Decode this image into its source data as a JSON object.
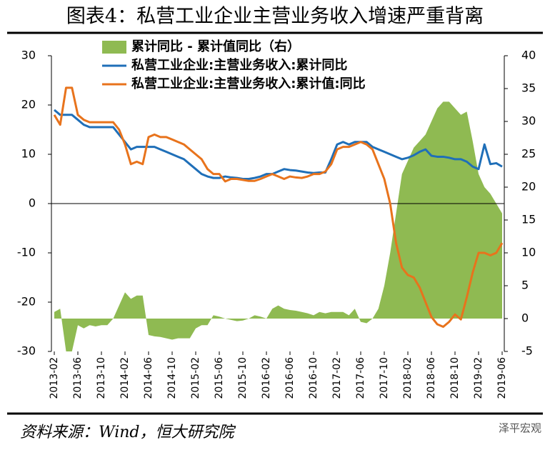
{
  "chart_data": {
    "type": "line",
    "title": "图表4：私营工业企业主营业务收入增速严重背离",
    "source": "资料来源：Wind，恒大研究院",
    "watermark": "泽平宏观",
    "categories": [
      "2013-02",
      null,
      null,
      null,
      "2013-06",
      null,
      null,
      null,
      "2013-10",
      null,
      null,
      null,
      "2014-02",
      null,
      null,
      null,
      "2014-06",
      null,
      null,
      null,
      "2014-10",
      null,
      null,
      null,
      "2015-02",
      null,
      null,
      null,
      "2015-06",
      null,
      null,
      null,
      "2015-10",
      null,
      null,
      null,
      "2016-02",
      null,
      null,
      null,
      "2016-06",
      null,
      null,
      null,
      "2016-10",
      null,
      null,
      null,
      "2017-02",
      null,
      null,
      null,
      "2017-06",
      null,
      null,
      null,
      "2017-10",
      null,
      null,
      null,
      "2018-02",
      null,
      null,
      null,
      "2018-06",
      null,
      null,
      null,
      "2018-10",
      null,
      null,
      null,
      "2019-02",
      null,
      null,
      null,
      "2019-06"
    ],
    "series": [
      {
        "name": "累计同比 - 累计值同比（右）",
        "type": "area",
        "axis": "y2",
        "color": "#8fba52",
        "values": [
          1,
          1.5,
          -5,
          -5,
          -1,
          -1.5,
          -1,
          -1.2,
          -1,
          -1,
          0,
          2,
          4,
          3,
          3.5,
          3.5,
          -2.5,
          -2.7,
          -2.8,
          -3,
          -3.2,
          -3,
          -3,
          -3,
          -1.5,
          -1,
          -1,
          0.5,
          0.3,
          0,
          -0.2,
          -0.4,
          -0.3,
          0,
          0.5,
          0.3,
          0,
          1.5,
          2,
          1.5,
          1.3,
          1.2,
          1,
          0.8,
          0.5,
          1,
          0.8,
          1,
          1,
          1,
          0.5,
          1.5,
          -0.5,
          -0.7,
          0,
          1.5,
          5,
          10,
          16,
          22,
          24,
          26,
          27,
          28,
          30,
          32,
          33,
          33,
          32,
          31,
          31.5,
          27,
          22,
          20,
          19,
          17.5,
          16
        ]
      },
      {
        "name": "私营工业企业:主营业务收入:累计同比",
        "type": "line",
        "color": "#1f6fb8",
        "values": [
          19,
          18,
          18,
          18,
          17,
          16,
          15.5,
          15.5,
          15.5,
          15.5,
          15.5,
          14,
          12.5,
          11,
          11.5,
          11.5,
          11.5,
          11.5,
          11,
          10.5,
          10,
          9.5,
          9,
          8,
          7,
          6,
          5.5,
          5.2,
          5.2,
          5.5,
          5.3,
          5.2,
          5,
          5,
          5.2,
          5.5,
          6,
          6,
          6.5,
          7,
          6.8,
          6.7,
          6.5,
          6.3,
          6.2,
          6.3,
          6.3,
          9,
          12,
          12.5,
          12,
          12.5,
          12.5,
          12.5,
          11.5,
          11,
          10.5,
          10,
          9.5,
          9,
          9.3,
          9.8,
          10.5,
          11,
          9.7,
          9.5,
          9.5,
          9.3,
          9,
          9,
          8.5,
          7.5,
          7,
          12,
          8,
          8.2,
          7.5
        ]
      },
      {
        "name": "私营工业企业:主营业务收入:累计值:同比",
        "type": "line",
        "color": "#e8731c",
        "values": [
          18,
          16,
          23.5,
          23.5,
          18,
          17,
          16.5,
          16.5,
          16.5,
          16.5,
          16.5,
          15,
          12,
          8,
          8.5,
          8,
          13.5,
          14,
          13.5,
          13.5,
          13,
          12.5,
          12,
          11,
          10,
          9,
          7,
          6,
          6,
          4.5,
          5,
          5,
          4.8,
          4.6,
          4.6,
          5,
          5.5,
          6,
          5.5,
          5,
          5.5,
          5.3,
          5.2,
          5.5,
          6,
          6,
          6.5,
          8,
          11,
          11.5,
          11.5,
          12,
          12.5,
          12,
          11,
          8,
          5,
          0,
          -8,
          -13,
          -14.5,
          -15,
          -17,
          -20,
          -23,
          -24.5,
          -25,
          -24,
          -22.5,
          -23.5,
          -19,
          -14,
          -10,
          -10,
          -10.5,
          -10,
          -8
        ]
      }
    ],
    "ylim": [
      -30,
      30
    ],
    "yticks": [
      -30,
      -20,
      -10,
      0,
      10,
      20,
      30
    ],
    "y2lim": [
      -5,
      40
    ],
    "y2ticks": [
      -5,
      0,
      5,
      10,
      15,
      20,
      25,
      30,
      35,
      40
    ],
    "legend": "top"
  }
}
